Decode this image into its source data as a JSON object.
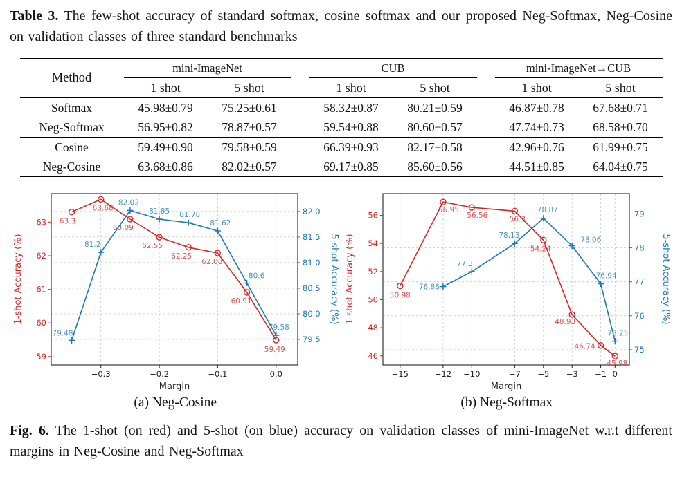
{
  "colors": {
    "red": "#d62728",
    "blue": "#1f77b4",
    "text": "#141414",
    "grid": "#c9c9c9"
  },
  "table": {
    "caption_label": "Table 3.",
    "caption_text": "The few-shot accuracy of standard softmax, cosine softmax and our proposed Neg-Softmax, Neg-Cosine on validation classes of three standard benchmarks",
    "method_header": "Method",
    "group_headers": [
      "mini-ImageNet",
      "CUB",
      "mini-ImageNet→CUB"
    ],
    "subheaders": [
      "1 shot",
      "5 shot",
      "1 shot",
      "5 shot",
      "1 shot",
      "5 shot"
    ],
    "rows": [
      {
        "method": "Softmax",
        "values": [
          "45.98±0.79",
          "75.25±0.61",
          "58.32±0.87",
          "80.21±0.59",
          "46.87±0.78",
          "67.68±0.71"
        ]
      },
      {
        "method": "Neg-Softmax",
        "values": [
          "56.95±0.82",
          "78.87±0.57",
          "59.54±0.88",
          "80.60±0.57",
          "47.74±0.73",
          "68.58±0.70"
        ]
      },
      {
        "method": "Cosine",
        "values": [
          "59.49±0.90",
          "79.58±0.59",
          "66.39±0.93",
          "82.17±0.58",
          "42.96±0.76",
          "61.99±0.75"
        ]
      },
      {
        "method": "Neg-Cosine",
        "values": [
          "63.68±0.86",
          "82.02±0.57",
          "69.17±0.85",
          "85.60±0.56",
          "44.51±0.85",
          "64.04±0.75"
        ]
      }
    ]
  },
  "figure": {
    "caption_label": "Fig. 6.",
    "caption_text": "The 1-shot (on red) and 5-shot (on blue) accuracy on validation classes of mini-ImageNet w.r.t different margins in Neg-Cosine and Neg-Softmax",
    "subcaption_a": "(a) Neg-Cosine",
    "subcaption_b": "(b) Neg-Softmax"
  },
  "chart_data": [
    {
      "type": "line",
      "xlabel": "Margin",
      "ylabel_left": "1-shot Accuracy (%)",
      "ylabel_right": "5-shot Accuracy (%)",
      "xlim": [
        -0.385,
        0.037
      ],
      "left_ylim": [
        58.75,
        63.85
      ],
      "right_ylim": [
        79.0,
        82.35
      ],
      "xticks": [
        -0.3,
        -0.2,
        -0.1,
        0.0
      ],
      "xtick_labels": [
        "−0.3",
        "−0.2",
        "−0.1",
        "0.0"
      ],
      "left_ticks": [
        59,
        60,
        61,
        62,
        63
      ],
      "left_tick_labels": [
        "59",
        "60",
        "61",
        "62",
        "63"
      ],
      "right_ticks": [
        79.5,
        80.0,
        80.5,
        81.0,
        81.5,
        82.0
      ],
      "right_tick_labels": [
        "79.5",
        "80.0",
        "80.5",
        "81.0",
        "81.5",
        "82.0"
      ],
      "grid": true,
      "series": [
        {
          "name": "1-shot",
          "axis": "left",
          "color": "#d62728",
          "marker": "circle",
          "x": [
            -0.35,
            -0.3,
            -0.25,
            -0.2,
            -0.15,
            -0.1,
            -0.05,
            0.0
          ],
          "values": [
            63.3,
            63.68,
            63.09,
            62.55,
            62.25,
            62.08,
            60.91,
            59.49
          ],
          "labels": [
            "63.3",
            "63.68",
            "63.09",
            "62.55",
            "62.25",
            "62.08",
            "60.91",
            "59.49"
          ]
        },
        {
          "name": "5-shot",
          "axis": "right",
          "color": "#1f77b4",
          "marker": "plus",
          "x": [
            -0.35,
            -0.3,
            -0.25,
            -0.2,
            -0.15,
            -0.1,
            -0.05,
            0.0
          ],
          "values": [
            79.48,
            81.2,
            82.02,
            81.85,
            81.78,
            81.62,
            80.6,
            79.58
          ],
          "labels": [
            "79.48",
            "81.2",
            "82.02",
            "81.85",
            "81.78",
            "81.62",
            "80.6",
            "79.58"
          ]
        }
      ]
    },
    {
      "type": "line",
      "xlabel": "Margin",
      "ylabel_left": "1-shot Accuracy (%)",
      "ylabel_right": "5-shot Accuracy (%)",
      "xlim": [
        -16.2,
        1.0
      ],
      "left_ylim": [
        45.35,
        57.55
      ],
      "right_ylim": [
        74.55,
        79.6
      ],
      "xticks": [
        -15,
        -12,
        -10,
        -7,
        -5,
        -3,
        -1,
        0
      ],
      "xtick_labels": [
        "−15",
        "−12",
        "−10",
        "−7",
        "−5",
        "−3",
        "−1",
        "0"
      ],
      "left_ticks": [
        46,
        48,
        50,
        52,
        54,
        56
      ],
      "left_tick_labels": [
        "46",
        "48",
        "50",
        "52",
        "54",
        "56"
      ],
      "right_ticks": [
        75,
        76,
        77,
        78,
        79
      ],
      "right_tick_labels": [
        "75",
        "76",
        "77",
        "78",
        "79"
      ],
      "grid": true,
      "series": [
        {
          "name": "1-shot",
          "axis": "left",
          "color": "#d62728",
          "marker": "circle",
          "x": [
            -15,
            -12,
            -10,
            -7,
            -5,
            -3,
            -1,
            0
          ],
          "values": [
            50.98,
            56.95,
            56.56,
            56.3,
            54.24,
            48.93,
            46.74,
            45.98
          ],
          "labels": [
            "50.98",
            "56.95",
            "56.56",
            "56.3",
            "54.24",
            "48.93",
            "46.74",
            "45.98"
          ]
        },
        {
          "name": "5-shot",
          "axis": "right",
          "color": "#1f77b4",
          "marker": "plus",
          "x": [
            -12,
            -10,
            -7,
            -5,
            -3,
            -1,
            0
          ],
          "values": [
            76.86,
            77.3,
            78.13,
            78.87,
            78.06,
            76.94,
            75.25
          ],
          "labels": [
            "76.86",
            "77.3",
            "78.13",
            "78.87",
            "78.06",
            "76.94",
            "75.25"
          ]
        }
      ]
    }
  ]
}
